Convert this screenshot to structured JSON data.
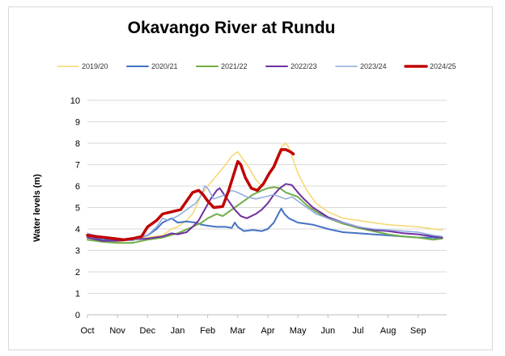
{
  "chart_data": {
    "type": "line",
    "title": "Okavango River at Rundu",
    "xlabel": "",
    "ylabel": "Water levels (m)",
    "ylim": [
      0,
      10
    ],
    "yticks": [
      "0",
      "1",
      "2",
      "3",
      "4",
      "5",
      "6",
      "7",
      "8",
      "9",
      "10"
    ],
    "month_ticks": [
      "Oct",
      "Nov",
      "Dec",
      "Jan",
      "Feb",
      "Mar",
      "Apr",
      "May",
      "Jun",
      "Jul",
      "Aug",
      "Sep"
    ],
    "grid": "horizontal",
    "legend_position": "top",
    "series": [
      {
        "name": "2019/20",
        "color": "#f5d76e",
        "width": 1.5,
        "points": [
          [
            0,
            3.6
          ],
          [
            0.5,
            3.5
          ],
          [
            1,
            3.4
          ],
          [
            1.5,
            3.5
          ],
          [
            2,
            3.6
          ],
          [
            2.5,
            3.7
          ],
          [
            2.8,
            4.0
          ],
          [
            3,
            4.1
          ],
          [
            3.3,
            4.4
          ],
          [
            3.5,
            4.7
          ],
          [
            3.8,
            5.6
          ],
          [
            4,
            6.0
          ],
          [
            4.3,
            6.5
          ],
          [
            4.6,
            7.0
          ],
          [
            4.8,
            7.4
          ],
          [
            5,
            7.6
          ],
          [
            5.2,
            7.2
          ],
          [
            5.4,
            6.8
          ],
          [
            5.6,
            6.3
          ],
          [
            5.8,
            6.0
          ],
          [
            6,
            6.4
          ],
          [
            6.2,
            7.0
          ],
          [
            6.4,
            7.7
          ],
          [
            6.5,
            7.9
          ],
          [
            6.6,
            8.0
          ],
          [
            6.7,
            7.8
          ],
          [
            6.85,
            7.2
          ],
          [
            7,
            6.6
          ],
          [
            7.3,
            5.8
          ],
          [
            7.6,
            5.2
          ],
          [
            8,
            4.8
          ],
          [
            8.5,
            4.5
          ],
          [
            9,
            4.4
          ],
          [
            9.5,
            4.3
          ],
          [
            10,
            4.2
          ],
          [
            10.5,
            4.15
          ],
          [
            11,
            4.1
          ],
          [
            11.3,
            4.05
          ],
          [
            11.5,
            4.0
          ],
          [
            11.8,
            3.95
          ]
        ]
      },
      {
        "name": "2020/21",
        "color": "#4472c4",
        "width": 2,
        "points": [
          [
            0,
            3.7
          ],
          [
            0.5,
            3.5
          ],
          [
            1,
            3.5
          ],
          [
            1.5,
            3.5
          ],
          [
            2,
            3.7
          ],
          [
            2.3,
            4.0
          ],
          [
            2.5,
            4.3
          ],
          [
            2.8,
            4.5
          ],
          [
            3,
            4.3
          ],
          [
            3.3,
            4.35
          ],
          [
            3.6,
            4.3
          ],
          [
            3.8,
            4.2
          ],
          [
            4,
            4.15
          ],
          [
            4.3,
            4.1
          ],
          [
            4.6,
            4.1
          ],
          [
            4.8,
            4.05
          ],
          [
            4.9,
            4.3
          ],
          [
            5,
            4.1
          ],
          [
            5.2,
            3.9
          ],
          [
            5.5,
            3.95
          ],
          [
            5.8,
            3.9
          ],
          [
            6,
            4.0
          ],
          [
            6.2,
            4.3
          ],
          [
            6.35,
            4.7
          ],
          [
            6.45,
            4.95
          ],
          [
            6.55,
            4.7
          ],
          [
            6.7,
            4.5
          ],
          [
            7,
            4.3
          ],
          [
            7.5,
            4.2
          ],
          [
            8,
            4.0
          ],
          [
            8.5,
            3.85
          ],
          [
            9,
            3.8
          ],
          [
            9.5,
            3.75
          ],
          [
            10,
            3.7
          ],
          [
            10.5,
            3.65
          ],
          [
            11,
            3.6
          ],
          [
            11.5,
            3.6
          ],
          [
            11.8,
            3.55
          ]
        ]
      },
      {
        "name": "2021/22",
        "color": "#70ad47",
        "width": 2,
        "points": [
          [
            0,
            3.5
          ],
          [
            0.5,
            3.4
          ],
          [
            1,
            3.35
          ],
          [
            1.5,
            3.35
          ],
          [
            2,
            3.5
          ],
          [
            2.5,
            3.6
          ],
          [
            3,
            3.8
          ],
          [
            3.5,
            4.1
          ],
          [
            3.8,
            4.3
          ],
          [
            4,
            4.5
          ],
          [
            4.3,
            4.7
          ],
          [
            4.5,
            4.6
          ],
          [
            4.7,
            4.8
          ],
          [
            4.9,
            5.0
          ],
          [
            5.1,
            5.2
          ],
          [
            5.3,
            5.4
          ],
          [
            5.5,
            5.6
          ],
          [
            5.8,
            5.8
          ],
          [
            6,
            5.9
          ],
          [
            6.2,
            5.95
          ],
          [
            6.4,
            5.9
          ],
          [
            6.6,
            5.7
          ],
          [
            6.8,
            5.6
          ],
          [
            7,
            5.5
          ],
          [
            7.3,
            5.1
          ],
          [
            7.6,
            4.8
          ],
          [
            8,
            4.5
          ],
          [
            8.5,
            4.25
          ],
          [
            9,
            4.05
          ],
          [
            9.5,
            3.9
          ],
          [
            10,
            3.75
          ],
          [
            10.5,
            3.65
          ],
          [
            11,
            3.6
          ],
          [
            11.5,
            3.5
          ],
          [
            11.8,
            3.55
          ]
        ]
      },
      {
        "name": "2022/23",
        "color": "#7030a0",
        "width": 2,
        "points": [
          [
            0,
            3.6
          ],
          [
            0.5,
            3.45
          ],
          [
            1,
            3.45
          ],
          [
            1.5,
            3.5
          ],
          [
            2,
            3.55
          ],
          [
            2.5,
            3.65
          ],
          [
            2.8,
            3.8
          ],
          [
            3,
            3.75
          ],
          [
            3.3,
            3.85
          ],
          [
            3.5,
            4.1
          ],
          [
            3.7,
            4.4
          ],
          [
            3.9,
            4.9
          ],
          [
            4.1,
            5.4
          ],
          [
            4.3,
            5.8
          ],
          [
            4.4,
            5.9
          ],
          [
            4.5,
            5.7
          ],
          [
            4.7,
            5.3
          ],
          [
            4.9,
            4.9
          ],
          [
            5.1,
            4.6
          ],
          [
            5.3,
            4.5
          ],
          [
            5.6,
            4.7
          ],
          [
            5.8,
            4.9
          ],
          [
            6,
            5.2
          ],
          [
            6.2,
            5.6
          ],
          [
            6.4,
            5.9
          ],
          [
            6.6,
            6.1
          ],
          [
            6.8,
            6.05
          ],
          [
            7,
            5.7
          ],
          [
            7.2,
            5.4
          ],
          [
            7.5,
            5.0
          ],
          [
            8,
            4.55
          ],
          [
            8.5,
            4.3
          ],
          [
            9,
            4.1
          ],
          [
            9.5,
            3.95
          ],
          [
            10,
            3.9
          ],
          [
            10.5,
            3.8
          ],
          [
            11,
            3.75
          ],
          [
            11.5,
            3.65
          ],
          [
            11.8,
            3.6
          ]
        ]
      },
      {
        "name": "2023/24",
        "color": "#8faadc",
        "width": 1.5,
        "points": [
          [
            0,
            3.8
          ],
          [
            0.5,
            3.6
          ],
          [
            1,
            3.5
          ],
          [
            1.5,
            3.45
          ],
          [
            2,
            3.7
          ],
          [
            2.3,
            4.1
          ],
          [
            2.5,
            4.5
          ],
          [
            2.7,
            4.4
          ],
          [
            3,
            4.6
          ],
          [
            3.3,
            4.9
          ],
          [
            3.6,
            5.2
          ],
          [
            3.8,
            5.6
          ],
          [
            3.9,
            6.0
          ],
          [
            4,
            5.9
          ],
          [
            4.2,
            5.4
          ],
          [
            4.4,
            5.5
          ],
          [
            4.6,
            5.6
          ],
          [
            4.8,
            5.8
          ],
          [
            5,
            5.7
          ],
          [
            5.3,
            5.5
          ],
          [
            5.6,
            5.4
          ],
          [
            5.9,
            5.5
          ],
          [
            6.2,
            5.6
          ],
          [
            6.4,
            5.5
          ],
          [
            6.6,
            5.4
          ],
          [
            6.8,
            5.5
          ],
          [
            7,
            5.3
          ],
          [
            7.3,
            5.0
          ],
          [
            7.6,
            4.7
          ],
          [
            8,
            4.5
          ],
          [
            8.5,
            4.3
          ],
          [
            9,
            4.1
          ],
          [
            9.5,
            4.0
          ],
          [
            10,
            3.95
          ],
          [
            10.5,
            3.9
          ],
          [
            11,
            3.85
          ],
          [
            11.5,
            3.7
          ],
          [
            11.8,
            3.65
          ]
        ]
      },
      {
        "name": "2024/25",
        "color": "#c00000",
        "width": 3.5,
        "points": [
          [
            0,
            3.7
          ],
          [
            0.3,
            3.65
          ],
          [
            0.6,
            3.6
          ],
          [
            0.9,
            3.55
          ],
          [
            1.2,
            3.5
          ],
          [
            1.5,
            3.55
          ],
          [
            1.8,
            3.65
          ],
          [
            2,
            4.1
          ],
          [
            2.3,
            4.4
          ],
          [
            2.5,
            4.7
          ],
          [
            2.8,
            4.8
          ],
          [
            3.1,
            4.9
          ],
          [
            3.3,
            5.3
          ],
          [
            3.5,
            5.7
          ],
          [
            3.7,
            5.8
          ],
          [
            3.85,
            5.6
          ],
          [
            4,
            5.3
          ],
          [
            4.2,
            5.0
          ],
          [
            4.5,
            5.05
          ],
          [
            4.7,
            5.8
          ],
          [
            4.9,
            6.7
          ],
          [
            5,
            7.15
          ],
          [
            5.1,
            7.0
          ],
          [
            5.25,
            6.4
          ],
          [
            5.45,
            5.9
          ],
          [
            5.65,
            5.8
          ],
          [
            5.85,
            6.1
          ],
          [
            6.05,
            6.6
          ],
          [
            6.2,
            6.9
          ],
          [
            6.35,
            7.4
          ],
          [
            6.45,
            7.7
          ],
          [
            6.6,
            7.7
          ],
          [
            6.75,
            7.6
          ],
          [
            6.85,
            7.5
          ]
        ]
      }
    ]
  }
}
